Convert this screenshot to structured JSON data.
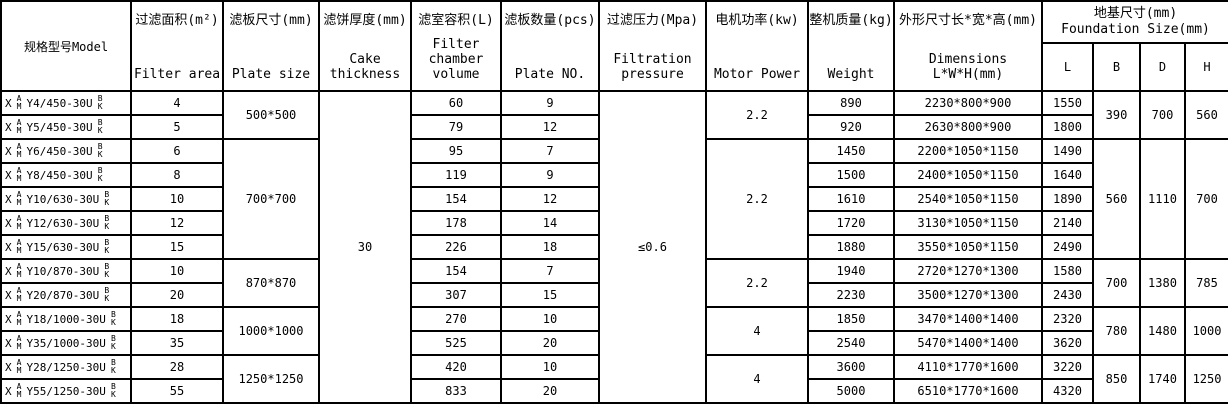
{
  "table": {
    "headers": {
      "model": "规格型号Model",
      "filter_area_zh": "过滤面积(m²)",
      "filter_area_en": "Filter area",
      "plate_size_zh": "滤板尺寸(mm)",
      "plate_size_en": "Plate size",
      "cake_zh": "滤饼厚度(mm)",
      "cake_en": "Cake thickness",
      "volume_zh": "滤室容积(L)",
      "volume_en": "Filter chamber volume",
      "plate_no_zh": "滤板数量(pcs)",
      "plate_no_en": "Plate NO.",
      "pressure_zh": "过滤压力(Mpa)",
      "pressure_en": "Filtration pressure",
      "motor_zh": "电机功率(kw)",
      "motor_en": "Motor Power",
      "weight_zh": "整机质量(kg)",
      "weight_en": "Weight",
      "dimensions_zh": "外形尺寸长*宽*高(mm)",
      "dimensions_en": "Dimensions L*W*H(mm)",
      "foundation_zh": "地基尺寸(mm)",
      "foundation_en": "Foundation Size(mm)",
      "foundation_sub": [
        "L",
        "B",
        "D",
        "H"
      ]
    },
    "model_affix": {
      "prefix": "X",
      "prefix_top": "A",
      "prefix_bottom": "M",
      "suffix_top": "B",
      "suffix_bottom": "K"
    },
    "spanning": {
      "cake_thickness": "30",
      "pressure": "≤0.6"
    },
    "groups": [
      {
        "start": 0,
        "span": 2,
        "plate_size": "500*500",
        "motor": "2.2",
        "B": "390",
        "D": "700",
        "H": "560"
      },
      {
        "start": 2,
        "span": 5,
        "plate_size": "700*700",
        "motor": "2.2",
        "B": "560",
        "D": "1110",
        "H": "700"
      },
      {
        "start": 7,
        "span": 2,
        "plate_size": "870*870",
        "motor": "2.2",
        "B": "700",
        "D": "1380",
        "H": "785"
      },
      {
        "start": 9,
        "span": 2,
        "plate_size": "1000*1000",
        "motor": "4",
        "B": "780",
        "D": "1480",
        "H": "1000"
      },
      {
        "start": 11,
        "span": 2,
        "plate_size": "1250*1250",
        "motor": "4",
        "B": "850",
        "D": "1740",
        "H": "1250"
      }
    ],
    "rows": [
      {
        "model": "Y4/450-30U",
        "area": "4",
        "volume": "60",
        "plates": "9",
        "weight": "890",
        "dims": "2230*800*900",
        "L": "1550"
      },
      {
        "model": "Y5/450-30U",
        "area": "5",
        "volume": "79",
        "plates": "12",
        "weight": "920",
        "dims": "2630*800*900",
        "L": "1800"
      },
      {
        "model": "Y6/450-30U",
        "area": "6",
        "volume": "95",
        "plates": "7",
        "weight": "1450",
        "dims": "2200*1050*1150",
        "L": "1490"
      },
      {
        "model": "Y8/450-30U",
        "area": "8",
        "volume": "119",
        "plates": "9",
        "weight": "1500",
        "dims": "2400*1050*1150",
        "L": "1640"
      },
      {
        "model": "Y10/630-30U",
        "area": "10",
        "volume": "154",
        "plates": "12",
        "weight": "1610",
        "dims": "2540*1050*1150",
        "L": "1890"
      },
      {
        "model": "Y12/630-30U",
        "area": "12",
        "volume": "178",
        "plates": "14",
        "weight": "1720",
        "dims": "3130*1050*1150",
        "L": "2140"
      },
      {
        "model": "Y15/630-30U",
        "area": "15",
        "volume": "226",
        "plates": "18",
        "weight": "1880",
        "dims": "3550*1050*1150",
        "L": "2490"
      },
      {
        "model": "Y10/870-30U",
        "area": "10",
        "volume": "154",
        "plates": "7",
        "weight": "1940",
        "dims": "2720*1270*1300",
        "L": "1580"
      },
      {
        "model": "Y20/870-30U",
        "area": "20",
        "volume": "307",
        "plates": "15",
        "weight": "2230",
        "dims": "3500*1270*1300",
        "L": "2430"
      },
      {
        "model": "Y18/1000-30U",
        "area": "18",
        "volume": "270",
        "plates": "10",
        "weight": "1850",
        "dims": "3470*1400*1400",
        "L": "2320"
      },
      {
        "model": "Y35/1000-30U",
        "area": "35",
        "volume": "525",
        "plates": "20",
        "weight": "2540",
        "dims": "5470*1400*1400",
        "L": "3620"
      },
      {
        "model": "Y28/1250-30U",
        "area": "28",
        "volume": "420",
        "plates": "10",
        "weight": "3600",
        "dims": "4110*1770*1600",
        "L": "3220"
      },
      {
        "model": "Y55/1250-30U",
        "area": "55",
        "volume": "833",
        "plates": "20",
        "weight": "5000",
        "dims": "6510*1770*1600",
        "L": "4320"
      }
    ]
  }
}
